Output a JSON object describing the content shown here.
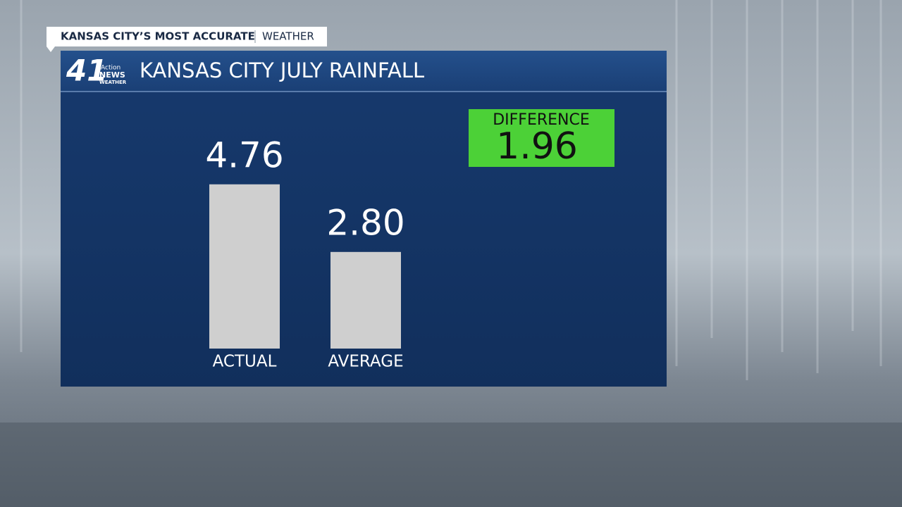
{
  "header": {
    "tagline": "KANSAS CITY’S MOST ACCURATE",
    "section": "WEATHER"
  },
  "logo": {
    "number": "41",
    "brand_top": "Action",
    "brand_bottom": "NEWS",
    "brand_sub": "WEATHER"
  },
  "chart_data": {
    "type": "bar",
    "title": "KANSAS CITY JULY RAINFALL",
    "categories": [
      "ACTUAL",
      "AVERAGE"
    ],
    "values": [
      4.76,
      2.8
    ],
    "value_labels": [
      "4.76",
      "2.80"
    ],
    "color": "#cfcfcf",
    "difference": {
      "label": "DIFFERENCE",
      "value": 1.96,
      "color": "#4cd137"
    }
  }
}
